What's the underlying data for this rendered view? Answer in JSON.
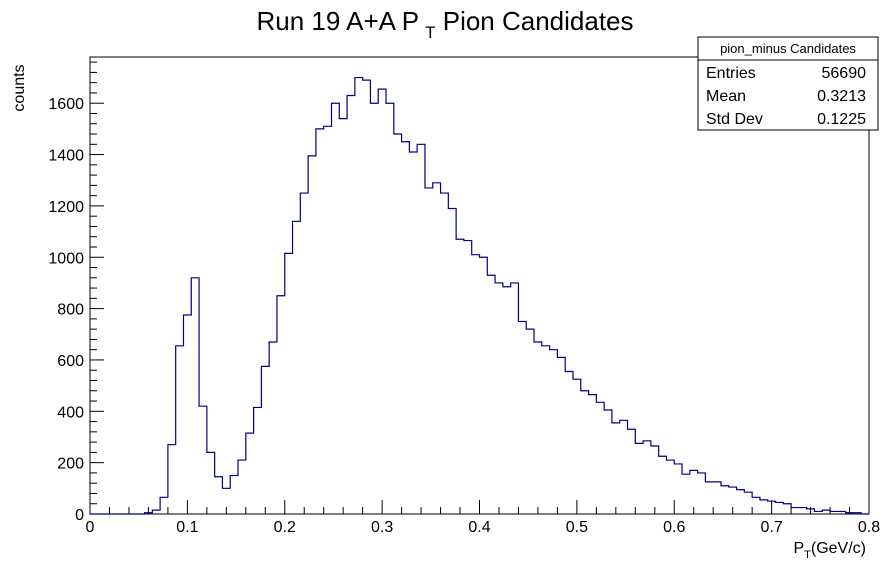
{
  "chart_data": {
    "type": "histogram",
    "title": "Run 19 A+A P",
    "title_subscript": "T",
    "title_suffix": " Pion Candidates",
    "xlabel": "P",
    "xlabel_subscript": "T",
    "xlabel_suffix": "(GeV/c)",
    "ylabel": "counts",
    "xlim": [
      0,
      0.8
    ],
    "ylim": [
      0,
      1780
    ],
    "x_ticks": [
      0,
      0.1,
      0.2,
      0.3,
      0.4,
      0.5,
      0.6,
      0.7,
      0.8
    ],
    "x_tick_labels": [
      "0",
      "0.1",
      "0.2",
      "0.3",
      "0.4",
      "0.5",
      "0.6",
      "0.7",
      "0.8"
    ],
    "y_ticks": [
      0,
      200,
      400,
      600,
      800,
      1000,
      1200,
      1400,
      1600
    ],
    "y_tick_labels": [
      "0",
      "200",
      "400",
      "600",
      "800",
      "1000",
      "1200",
      "1400",
      "1600"
    ],
    "grid": false,
    "line_color": "#000080",
    "bin_width": 0.008,
    "bin_start": 0,
    "counts": [
      0,
      0,
      0,
      0,
      0,
      0,
      0,
      5,
      15,
      65,
      270,
      655,
      775,
      920,
      420,
      240,
      145,
      100,
      150,
      210,
      315,
      415,
      575,
      670,
      850,
      1015,
      1140,
      1250,
      1395,
      1500,
      1510,
      1600,
      1540,
      1630,
      1700,
      1690,
      1600,
      1655,
      1600,
      1480,
      1450,
      1410,
      1440,
      1270,
      1290,
      1250,
      1190,
      1070,
      1065,
      1010,
      1000,
      930,
      900,
      885,
      900,
      750,
      720,
      670,
      655,
      640,
      610,
      555,
      525,
      480,
      465,
      435,
      405,
      355,
      365,
      330,
      275,
      285,
      265,
      225,
      210,
      195,
      155,
      170,
      160,
      125,
      125,
      110,
      105,
      95,
      85,
      65,
      55,
      50,
      45,
      40,
      25,
      25,
      20,
      10,
      15,
      10,
      10,
      5,
      5,
      0
    ],
    "stats_box": {
      "title": "pion_minus Candidates",
      "rows": [
        {
          "label": "Entries",
          "value": "56690"
        },
        {
          "label": "Mean",
          "value": "0.3213"
        },
        {
          "label": "Std Dev",
          "value": "0.1225"
        }
      ]
    }
  }
}
